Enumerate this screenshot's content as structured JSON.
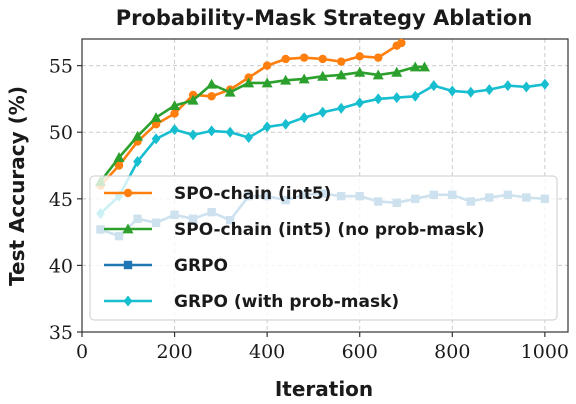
{
  "chart_data": {
    "type": "line",
    "title": "Probability-Mask Strategy Ablation",
    "xlabel": "Iteration",
    "ylabel": "Test Accuracy (%)",
    "xlim": [
      0,
      1050
    ],
    "ylim": [
      35,
      57
    ],
    "xticks": [
      0,
      200,
      400,
      600,
      800,
      1000
    ],
    "yticks": [
      35,
      40,
      45,
      50,
      55
    ],
    "grid": true,
    "legend_position": "lower-left",
    "series": [
      {
        "name": "SPO-chain (int5)",
        "color": "#ff7f0e",
        "marker": "circle",
        "x": [
          40,
          80,
          120,
          160,
          200,
          240,
          280,
          320,
          360,
          400,
          440,
          480,
          520,
          560,
          600,
          640,
          680,
          690
        ],
        "y": [
          46.0,
          47.5,
          49.3,
          50.6,
          51.4,
          52.8,
          52.7,
          53.2,
          54.1,
          55.0,
          55.5,
          55.6,
          55.5,
          55.3,
          55.7,
          55.6,
          56.5,
          56.7
        ]
      },
      {
        "name": "SPO-chain (int5) (no prob-mask)",
        "color": "#2ca02c",
        "marker": "triangle",
        "x": [
          40,
          80,
          120,
          160,
          200,
          240,
          280,
          320,
          360,
          400,
          440,
          480,
          520,
          560,
          600,
          640,
          680,
          720,
          740
        ],
        "y": [
          46.3,
          48.1,
          49.7,
          51.1,
          52.0,
          52.4,
          53.6,
          53.0,
          53.7,
          53.7,
          53.9,
          54.0,
          54.2,
          54.3,
          54.5,
          54.3,
          54.5,
          54.9,
          54.9
        ]
      },
      {
        "name": "GRPO",
        "color": "#1f77b4",
        "marker": "square",
        "x": [
          40,
          80,
          120,
          160,
          200,
          240,
          280,
          320,
          360,
          400,
          440,
          480,
          520,
          560,
          600,
          640,
          680,
          720,
          760,
          800,
          840,
          880,
          920,
          960,
          1000
        ],
        "y": [
          42.7,
          42.2,
          43.5,
          43.2,
          43.8,
          43.5,
          44.0,
          43.4,
          45.2,
          45.2,
          44.9,
          45.3,
          45.4,
          45.2,
          45.2,
          44.8,
          44.7,
          45.0,
          45.3,
          45.3,
          44.8,
          45.1,
          45.3,
          45.1,
          45.0
        ]
      },
      {
        "name": "GRPO (with prob-mask)",
        "color": "#17becf",
        "marker": "diamond",
        "x": [
          40,
          80,
          120,
          160,
          200,
          240,
          280,
          320,
          360,
          400,
          440,
          480,
          520,
          560,
          600,
          640,
          680,
          720,
          760,
          800,
          840,
          880,
          920,
          960,
          1000
        ],
        "y": [
          43.9,
          45.2,
          47.8,
          49.5,
          50.2,
          49.8,
          50.1,
          50.0,
          49.6,
          50.4,
          50.6,
          51.1,
          51.5,
          51.8,
          52.2,
          52.5,
          52.6,
          52.7,
          53.5,
          53.1,
          53.0,
          53.2,
          53.5,
          53.4,
          53.6
        ]
      }
    ]
  }
}
